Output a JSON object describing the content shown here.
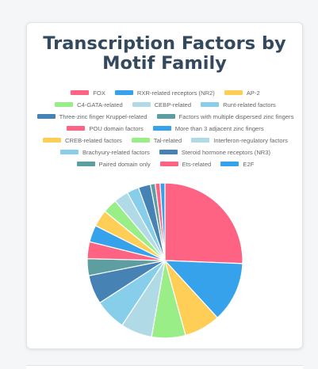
{
  "chart_data": {
    "type": "pie",
    "title": "Transcription Factors by Motif Family",
    "legend_position": "top",
    "slices": [
      {
        "label": "FOX",
        "value": 25.5,
        "color": "#ff6384"
      },
      {
        "label": "RXR-related receptors (NR2)",
        "value": 12.5,
        "color": "#36a2eb"
      },
      {
        "label": "AP-2",
        "value": 7.5,
        "color": "#ffce56"
      },
      {
        "label": "C4-GATA-related",
        "value": 7.0,
        "color": "#99ee88"
      },
      {
        "label": "CEBP-related",
        "value": 6.5,
        "color": "#b0dbe6"
      },
      {
        "label": "Runt-related factors",
        "value": 6.5,
        "color": "#87ceeb"
      },
      {
        "label": "Three-zinc finger Kruppel-related",
        "value": 6.0,
        "color": "#4682b4"
      },
      {
        "label": "Factors with multiple dispersed zinc fingers",
        "value": 3.5,
        "color": "#5f9ea0"
      },
      {
        "label": "POU domain factors",
        "value": 3.5,
        "color": "#ff6384"
      },
      {
        "label": "More than 3 adjacent zinc fingers",
        "value": 3.5,
        "color": "#36a2eb"
      },
      {
        "label": "CREB-related factors",
        "value": 3.5,
        "color": "#ffce56"
      },
      {
        "label": "Tal-related",
        "value": 3.0,
        "color": "#99ee88"
      },
      {
        "label": "Interferon-regulatory factors",
        "value": 3.0,
        "color": "#b0dbe6"
      },
      {
        "label": "Brachyury-related factors",
        "value": 2.5,
        "color": "#87ceeb"
      },
      {
        "label": "Steroid hormone receptors (NR3)",
        "value": 2.5,
        "color": "#4682b4"
      },
      {
        "label": "Paired domain only",
        "value": 1.0,
        "color": "#5f9ea0"
      },
      {
        "label": "Ets-related",
        "value": 1.0,
        "color": "#ff6384"
      },
      {
        "label": "E2F",
        "value": 1.0,
        "color": "#36a2eb"
      }
    ]
  }
}
